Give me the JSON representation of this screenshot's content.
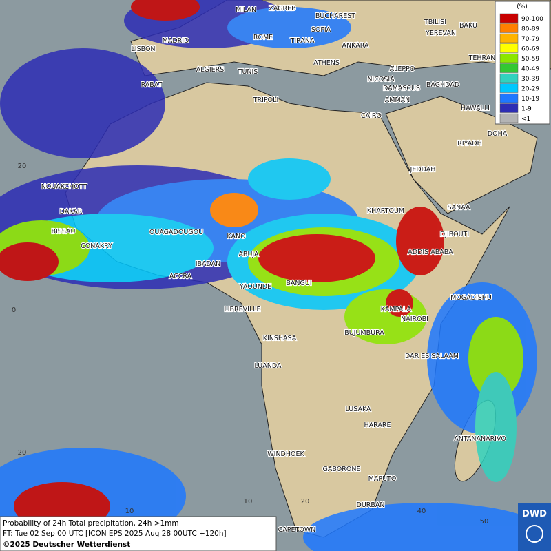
{
  "legend": {
    "unit": "(%)",
    "items": [
      {
        "label": "90-100",
        "color": "#c80000"
      },
      {
        "label": "80-89",
        "color": "#ff7f00"
      },
      {
        "label": "70-79",
        "color": "#ffb400"
      },
      {
        "label": "60-69",
        "color": "#ffff00"
      },
      {
        "label": "50-59",
        "color": "#8ce600"
      },
      {
        "label": "40-49",
        "color": "#32c832"
      },
      {
        "label": "30-39",
        "color": "#32d2be"
      },
      {
        "label": "20-29",
        "color": "#00c8ff"
      },
      {
        "label": "10-19",
        "color": "#1e78ff"
      },
      {
        "label": "1-9",
        "color": "#2d2db4"
      },
      {
        "label": "<1",
        "color": "#b4b4b4"
      }
    ]
  },
  "cities": [
    "MILAN",
    "ZAGREB",
    "BUCHAREST",
    "SOFIA",
    "ROME",
    "MADRID",
    "TIRANA",
    "ANKARA",
    "LISBON",
    "ATHENS",
    "TBILISI",
    "YEREVAN",
    "BAKU",
    "TEHRAN",
    "ALGIERS",
    "TUNIS",
    "ALEPPO",
    "RABAT",
    "NICOSIA",
    "BAGHDAD",
    "DAMASCUS",
    "TRIPOLI",
    "AMMAN",
    "HAWALLI",
    "CAIRO",
    "DOHA",
    "RIYADH",
    "JEDDAH",
    "NOUAKCHOTT",
    "KHARTOUM",
    "SANAA",
    "DAKAR",
    "BISSAU",
    "DJIBOUTI",
    "OUAGADOUGOU",
    "KANO",
    "CONAKRY",
    "ADDIS ABABA",
    "ABUJA",
    "IBADAN",
    "ACCRA",
    "BANGUI",
    "YAOUNDE",
    "MOGADISHU",
    "LIBREVILLE",
    "KAMPALA",
    "NAIROBI",
    "KINSHASA",
    "BUJUMBURA",
    "DAR ES SALAAM",
    "LUANDA",
    "LUSAKA",
    "HARARE",
    "ANTANANARIVO",
    "WINDHOEK",
    "GABORONE",
    "MAPUTO",
    "DURBAN",
    "CAPETOWN"
  ],
  "grid_labels": [
    "20",
    "0",
    "20",
    "10",
    "10",
    "20",
    "40",
    "50"
  ],
  "caption": {
    "line1": "Probability of 24h Total precipitation, 24h >1mm",
    "line2": "FT: Tue 02 Sep 00 UTC [ICON EPS 2025 Aug 28 00UTC +120h]",
    "line3": "©2025 Deutscher Wetterdienst"
  },
  "logo": "DWD"
}
